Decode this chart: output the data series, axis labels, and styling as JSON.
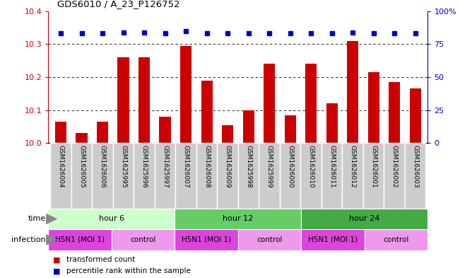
{
  "title": "GDS6010 / A_23_P126752",
  "samples": [
    "GSM1626004",
    "GSM1626005",
    "GSM1626006",
    "GSM1625995",
    "GSM1625996",
    "GSM1625997",
    "GSM1626007",
    "GSM1626008",
    "GSM1626009",
    "GSM1625998",
    "GSM1625999",
    "GSM1626000",
    "GSM1626010",
    "GSM1626011",
    "GSM1626012",
    "GSM1626001",
    "GSM1626002",
    "GSM1626003"
  ],
  "bar_values": [
    10.065,
    10.03,
    10.065,
    10.26,
    10.26,
    10.08,
    10.295,
    10.19,
    10.055,
    10.1,
    10.24,
    10.085,
    10.24,
    10.12,
    10.31,
    10.215,
    10.185,
    10.165
  ],
  "percentile_values": [
    83,
    83,
    83,
    84,
    84,
    83,
    85,
    83,
    83,
    83,
    83,
    83,
    83,
    83,
    84,
    83,
    83,
    83
  ],
  "bar_color": "#cc0000",
  "dot_color": "#0000cc",
  "ylim_left": [
    10.0,
    10.4
  ],
  "ylim_right": [
    0,
    100
  ],
  "yticks_left": [
    10.0,
    10.1,
    10.2,
    10.3,
    10.4
  ],
  "yticks_right": [
    0,
    25,
    50,
    75,
    100
  ],
  "ytick_labels_right": [
    "0",
    "25",
    "50",
    "75",
    "100%"
  ],
  "grid_values": [
    10.1,
    10.2,
    10.3
  ],
  "time_groups": [
    {
      "label": "hour 6",
      "start": 0,
      "end": 6,
      "color": "#ccffcc"
    },
    {
      "label": "hour 12",
      "start": 6,
      "end": 12,
      "color": "#66cc66"
    },
    {
      "label": "hour 24",
      "start": 12,
      "end": 18,
      "color": "#44aa44"
    }
  ],
  "infection_groups": [
    {
      "label": "H5N1 (MOI 1)",
      "start": 0,
      "end": 3,
      "color": "#dd44dd"
    },
    {
      "label": "control",
      "start": 3,
      "end": 6,
      "color": "#ee99ee"
    },
    {
      "label": "H5N1 (MOI 1)",
      "start": 6,
      "end": 9,
      "color": "#dd44dd"
    },
    {
      "label": "control",
      "start": 9,
      "end": 12,
      "color": "#ee99ee"
    },
    {
      "label": "H5N1 (MOI 1)",
      "start": 12,
      "end": 15,
      "color": "#dd44dd"
    },
    {
      "label": "control",
      "start": 15,
      "end": 18,
      "color": "#ee99ee"
    }
  ],
  "legend_bar_label": "transformed count",
  "legend_dot_label": "percentile rank within the sample",
  "background_color": "#ffffff",
  "bar_width": 0.55,
  "time_label": "time",
  "infection_label": "infection",
  "sample_cell_color": "#cccccc",
  "sample_cell_edge": "#ffffff",
  "arrow_color": "#888888"
}
